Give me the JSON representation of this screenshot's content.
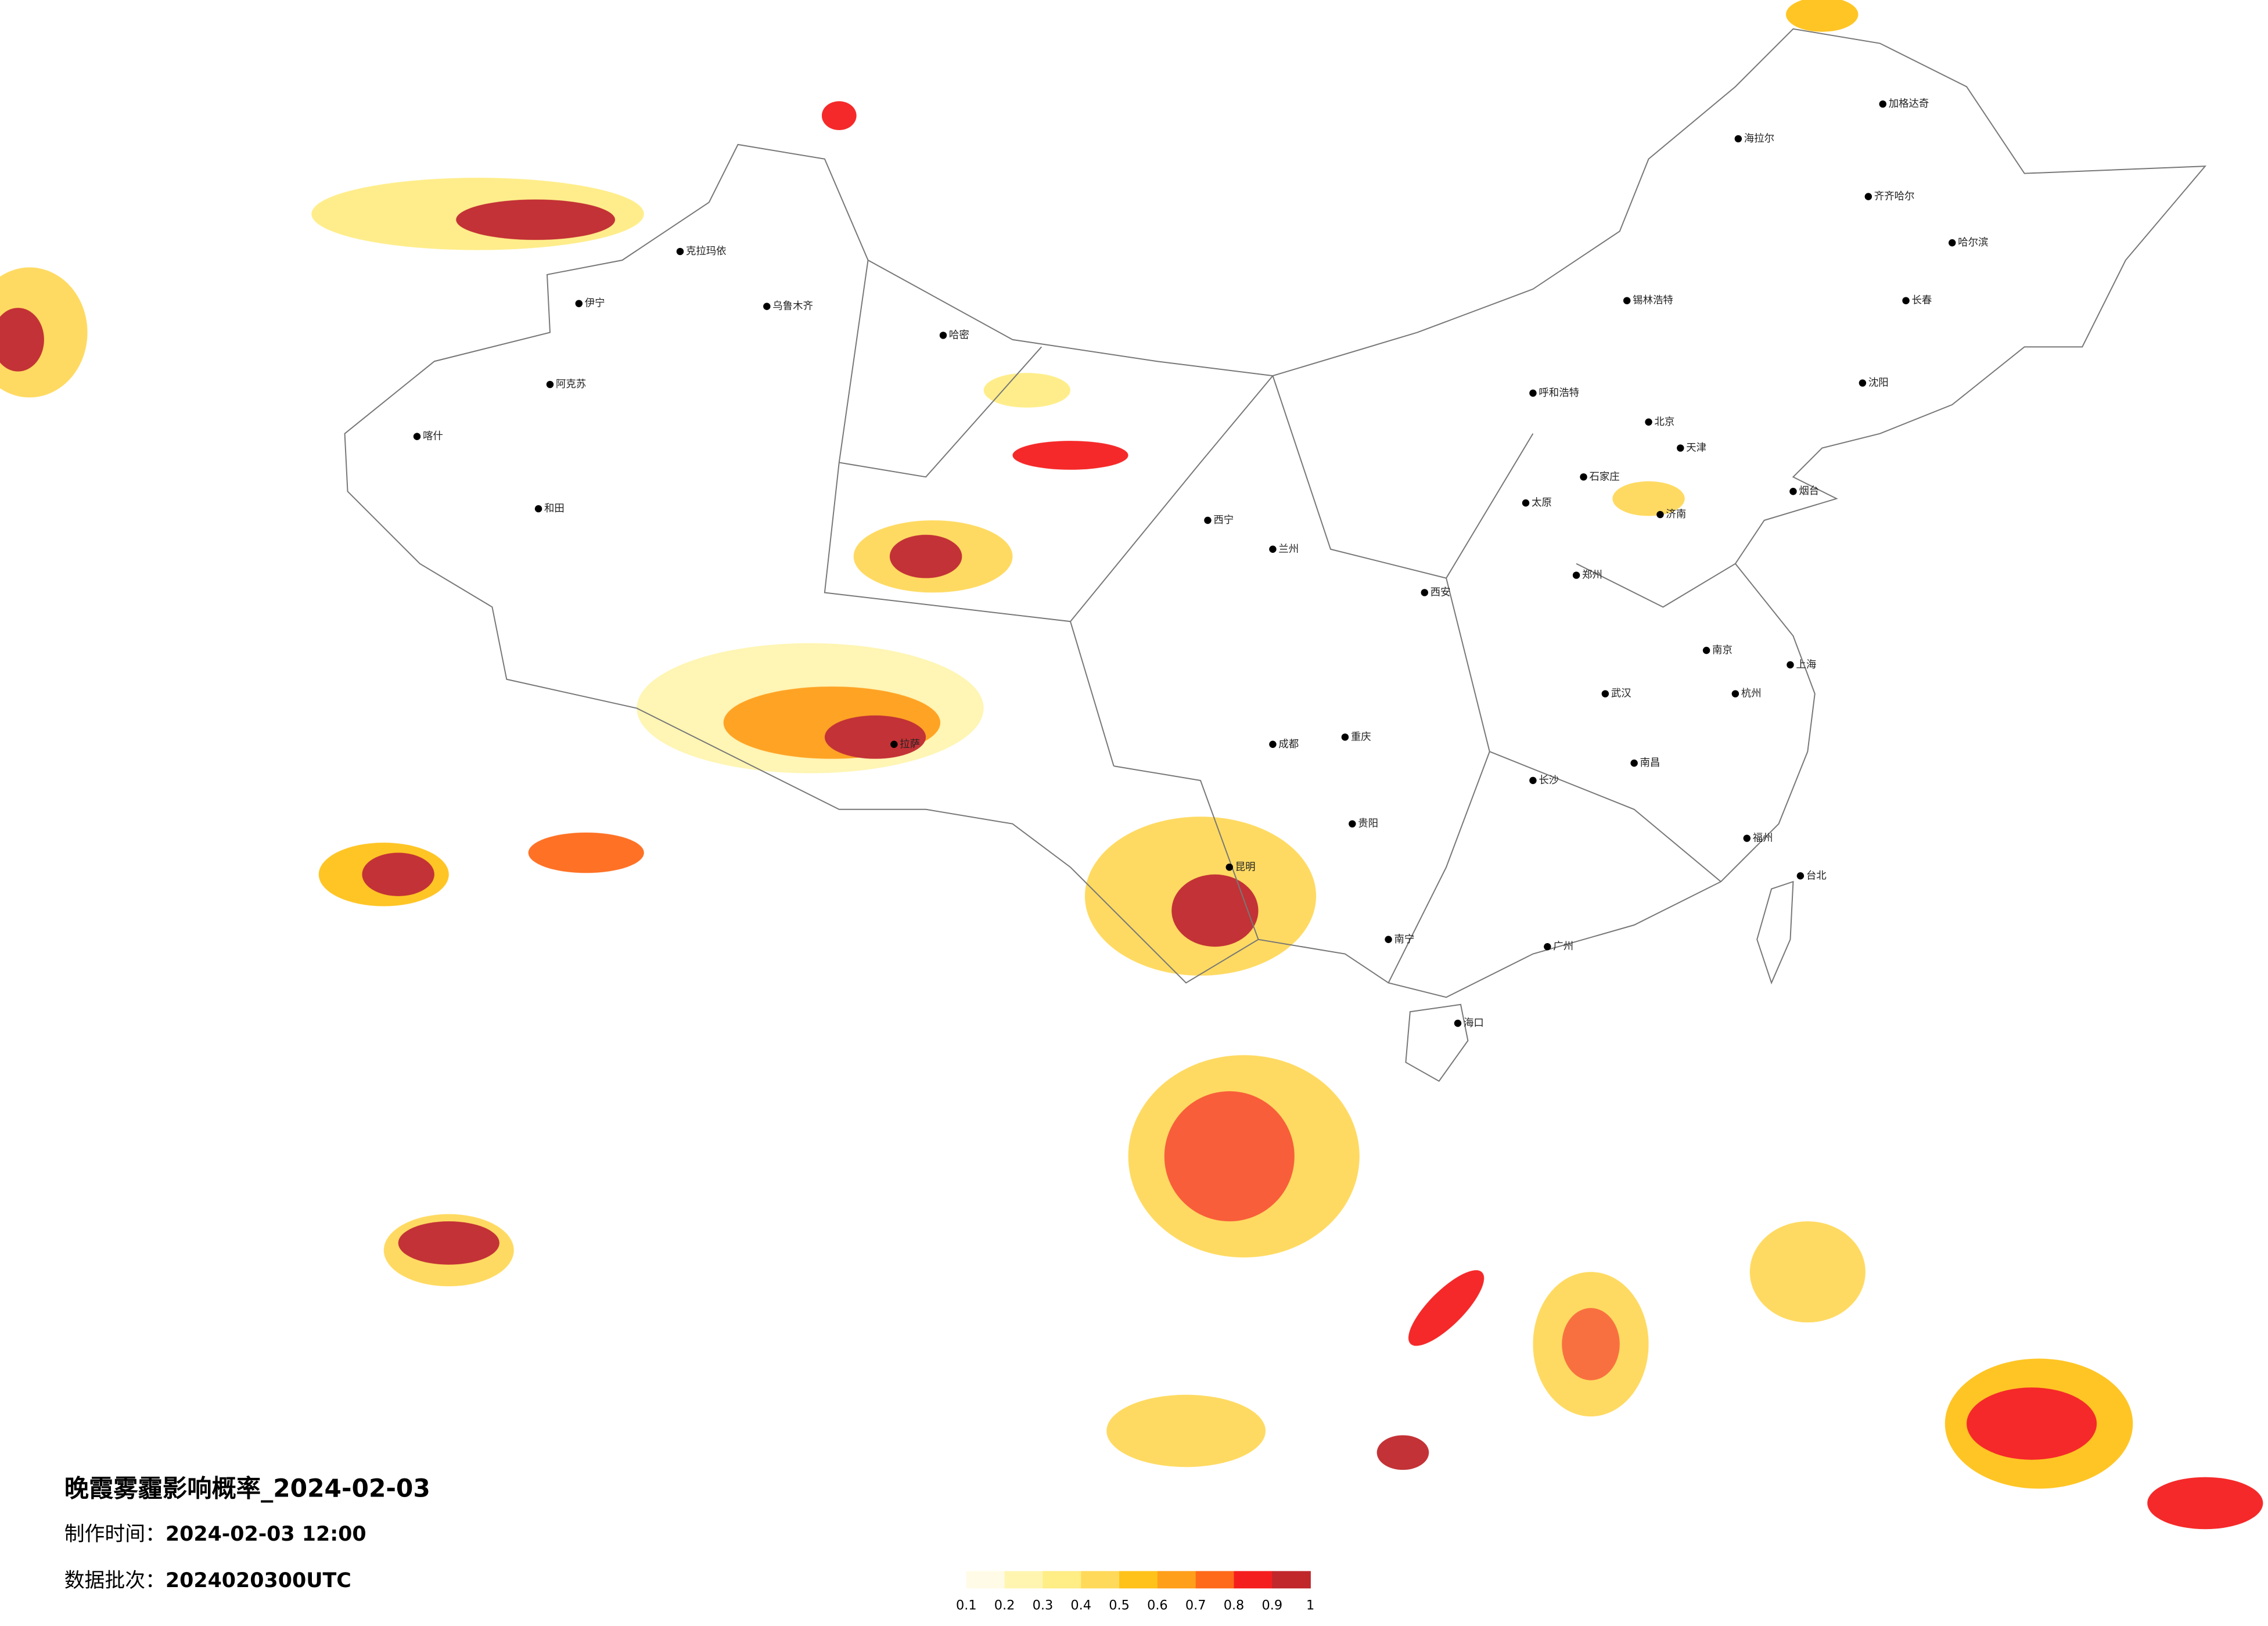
{
  "title": "晚霞雾霾影响概率_2024-02-03",
  "made_time": {
    "label": "制作时间：",
    "value": "2024-02-03 12:00"
  },
  "batch": {
    "label": "数据批次：",
    "value": "2024020300UTC"
  },
  "legend": {
    "colors": [
      "#fffbe6",
      "#fff5b0",
      "#ffed85",
      "#ffd95a",
      "#ffc21a",
      "#ff9f1a",
      "#ff6a1a",
      "#f51e1e",
      "#c0282c"
    ],
    "ticks": [
      0.1,
      0.2,
      0.3,
      0.4,
      0.5,
      0.6,
      0.7,
      0.8,
      0.9,
      1
    ]
  },
  "cities": [
    {
      "name": "北京"
    },
    {
      "name": "天津"
    },
    {
      "name": "哈尔滨"
    },
    {
      "name": "长春"
    },
    {
      "name": "沈阳"
    },
    {
      "name": "呼和浩特"
    },
    {
      "name": "石家庄"
    },
    {
      "name": "太原"
    },
    {
      "name": "济南"
    },
    {
      "name": "郑州"
    },
    {
      "name": "西安"
    },
    {
      "name": "兰州"
    },
    {
      "name": "西宁"
    },
    {
      "name": "乌鲁木齐"
    },
    {
      "name": "拉萨"
    },
    {
      "name": "成都"
    },
    {
      "name": "重庆"
    },
    {
      "name": "昆明"
    },
    {
      "name": "贵阳"
    },
    {
      "name": "南宁"
    },
    {
      "name": "广州"
    },
    {
      "name": "长沙"
    },
    {
      "name": "武汉"
    },
    {
      "name": "南昌"
    },
    {
      "name": "杭州"
    },
    {
      "name": "上海"
    },
    {
      "name": "南京"
    },
    {
      "name": "福州"
    },
    {
      "name": "台北"
    },
    {
      "name": "海口"
    },
    {
      "name": "喀什"
    },
    {
      "name": "和田"
    },
    {
      "name": "克拉玛依"
    },
    {
      "name": "伊宁"
    },
    {
      "name": "阿克苏"
    },
    {
      "name": "哈密"
    },
    {
      "name": "加格达奇"
    },
    {
      "name": "海拉尔"
    },
    {
      "name": "齐齐哈尔"
    },
    {
      "name": "锡林浩特"
    },
    {
      "name": "烟台"
    }
  ]
}
